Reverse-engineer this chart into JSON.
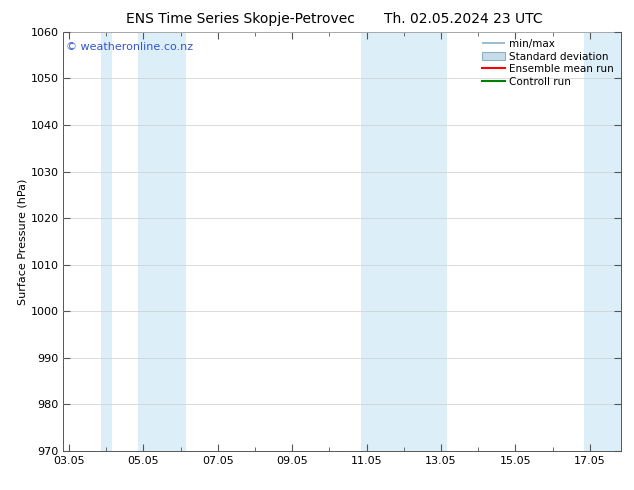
{
  "title_left": "ENS Time Series Skopje-Petrovec",
  "title_right": "Th. 02.05.2024 23 UTC",
  "ylabel": "Surface Pressure (hPa)",
  "ylim": [
    970,
    1060
  ],
  "yticks": [
    970,
    980,
    990,
    1000,
    1010,
    1020,
    1030,
    1040,
    1050,
    1060
  ],
  "xtick_labels": [
    "03.05",
    "05.05",
    "07.05",
    "09.05",
    "11.05",
    "13.05",
    "15.05",
    "17.05"
  ],
  "xtick_positions": [
    0,
    2,
    4,
    6,
    8,
    10,
    12,
    14
  ],
  "xlim": [
    -0.15,
    14.85
  ],
  "shaded_bands": [
    {
      "x_start": 0.85,
      "x_end": 1.15,
      "color": "#dceef8"
    },
    {
      "x_start": 1.85,
      "x_end": 3.15,
      "color": "#dceef8"
    },
    {
      "x_start": 7.85,
      "x_end": 10.15,
      "color": "#dceef8"
    },
    {
      "x_start": 13.85,
      "x_end": 14.85,
      "color": "#dceef8"
    }
  ],
  "watermark_text": "© weatheronline.co.nz",
  "watermark_color": "#3355cc",
  "watermark_fontsize": 8,
  "legend_items": [
    {
      "label": "min/max",
      "color": "#a8c8e0",
      "type": "errorbar"
    },
    {
      "label": "Standard deviation",
      "color": "#c8dce8",
      "type": "bar"
    },
    {
      "label": "Ensemble mean run",
      "color": "red",
      "type": "line"
    },
    {
      "label": "Controll run",
      "color": "green",
      "type": "line"
    }
  ],
  "bg_color": "#ffffff",
  "plot_bg_color": "#ffffff",
  "border_color": "#555555",
  "grid_color": "#cccccc",
  "title_fontsize": 10,
  "axis_label_fontsize": 8,
  "tick_fontsize": 8,
  "legend_fontsize": 7.5
}
